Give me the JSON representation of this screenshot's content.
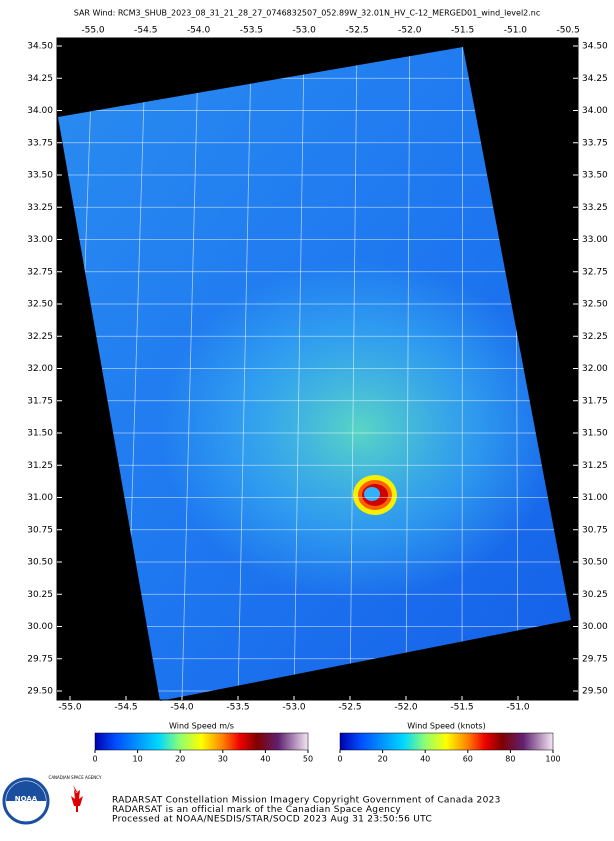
{
  "title": "SAR Wind: RCM3_SHUB_2023_08_31_21_28_27_0746832507_052.89W_32.01N_HV_C-12_MERGED01_wind_level2.nc",
  "lon_ticks_top": [
    {
      "value": -55.0,
      "label": "-55.0"
    },
    {
      "value": -54.5,
      "label": "-54.5"
    },
    {
      "value": -54.0,
      "label": "-54.0"
    },
    {
      "value": -53.5,
      "label": "-53.5"
    },
    {
      "value": -53.0,
      "label": "-53.0"
    },
    {
      "value": -52.5,
      "label": "-52.5"
    },
    {
      "value": -52.0,
      "label": "-52.0"
    },
    {
      "value": -51.5,
      "label": "-51.5"
    },
    {
      "value": -51.0,
      "label": "-51.0"
    },
    {
      "value": -50.5,
      "label": "-50.5"
    }
  ],
  "lon_ticks_bottom": [
    {
      "value": -55.0,
      "label": "-55.0"
    },
    {
      "value": -54.5,
      "label": "-54.5"
    },
    {
      "value": -54.0,
      "label": "-54.0"
    },
    {
      "value": -53.5,
      "label": "-53.5"
    },
    {
      "value": -53.0,
      "label": "-53.0"
    },
    {
      "value": -52.5,
      "label": "-52.5"
    },
    {
      "value": -52.0,
      "label": "-52.0"
    },
    {
      "value": -51.5,
      "label": "-51.5"
    },
    {
      "value": -51.0,
      "label": "-51.0"
    }
  ],
  "lat_ticks": [
    {
      "value": 34.5,
      "label": "34.50"
    },
    {
      "value": 34.25,
      "label": "34.25"
    },
    {
      "value": 34.0,
      "label": "34.00"
    },
    {
      "value": 33.75,
      "label": "33.75"
    },
    {
      "value": 33.5,
      "label": "33.50"
    },
    {
      "value": 33.25,
      "label": "33.25"
    },
    {
      "value": 33.0,
      "label": "33.00"
    },
    {
      "value": 32.75,
      "label": "32.75"
    },
    {
      "value": 32.5,
      "label": "32.50"
    },
    {
      "value": 32.25,
      "label": "32.25"
    },
    {
      "value": 32.0,
      "label": "32.00"
    },
    {
      "value": 31.75,
      "label": "31.75"
    },
    {
      "value": 31.5,
      "label": "31.50"
    },
    {
      "value": 31.25,
      "label": "31.25"
    },
    {
      "value": 31.0,
      "label": "31.00"
    },
    {
      "value": 30.75,
      "label": "30.75"
    },
    {
      "value": 30.5,
      "label": "30.50"
    },
    {
      "value": 30.25,
      "label": "30.25"
    },
    {
      "value": 30.0,
      "label": "30.00"
    },
    {
      "value": 29.75,
      "label": "29.75"
    },
    {
      "value": 29.5,
      "label": "29.50"
    }
  ],
  "colorbars": [
    {
      "title": "Wind Speed m/s",
      "ticks": [
        0,
        10,
        20,
        30,
        40,
        50
      ]
    },
    {
      "title": "Wind Speed (knots)",
      "ticks": [
        0,
        20,
        40,
        60,
        80,
        100
      ]
    }
  ],
  "logos": [
    "NOAA",
    "CANADIAN SPACE AGENCY"
  ],
  "footer": [
    "RADARSAT Constellation Mission Imagery Copyright Government of Canada 2023",
    "RADARSAT is an official mark of the Canadian Space Agency",
    "Processed at NOAA/NESDIS/STAR/SOCD 2023 Aug 31 23:50:56 UTC"
  ]
}
